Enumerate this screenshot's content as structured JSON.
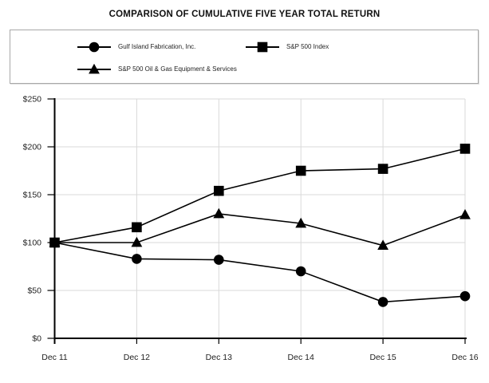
{
  "title": "COMPARISON OF CUMULATIVE FIVE YEAR TOTAL RETURN",
  "legend": {
    "items": [
      {
        "label": "Gulf Island Fabrication, Inc.",
        "marker": "circle"
      },
      {
        "label": "S&P 500 Index",
        "marker": "square"
      },
      {
        "label": "S&P 500 Oil & Gas Equipment & Services",
        "marker": "triangle"
      }
    ]
  },
  "axes": {
    "y_tick_labels": [
      "$0",
      "$50",
      "$100",
      "$150",
      "$200",
      "$250"
    ],
    "x_tick_labels": [
      "Dec 11",
      "Dec 12",
      "Dec 13",
      "Dec 14",
      "Dec 15",
      "Dec 16"
    ]
  },
  "chart_data": {
    "type": "line",
    "title": "COMPARISON OF CUMULATIVE FIVE YEAR TOTAL RETURN",
    "categories": [
      "Dec 11",
      "Dec 12",
      "Dec 13",
      "Dec 14",
      "Dec 15",
      "Dec 16"
    ],
    "series": [
      {
        "name": "Gulf Island Fabrication, Inc.",
        "marker": "circle",
        "values": [
          100,
          83,
          82,
          70,
          38,
          44
        ]
      },
      {
        "name": "S&P 500 Index",
        "marker": "square",
        "values": [
          100,
          116,
          154,
          175,
          177,
          198
        ]
      },
      {
        "name": "S&P 500 Oil & Gas Equipment & Services",
        "marker": "triangle",
        "values": [
          100,
          100,
          130,
          120,
          97,
          129
        ]
      }
    ],
    "xlabel": "",
    "ylabel": "",
    "ylim": [
      0,
      250
    ],
    "ytick_step": 50,
    "grid": true,
    "legend_position": "top",
    "currency_prefix": "$"
  },
  "colors": {
    "series": "#000000",
    "grid": "#d9d9d9",
    "axis": "#000000",
    "text": "#1f1f1f",
    "legend_border": "#a8a8a8",
    "background": "#ffffff"
  }
}
